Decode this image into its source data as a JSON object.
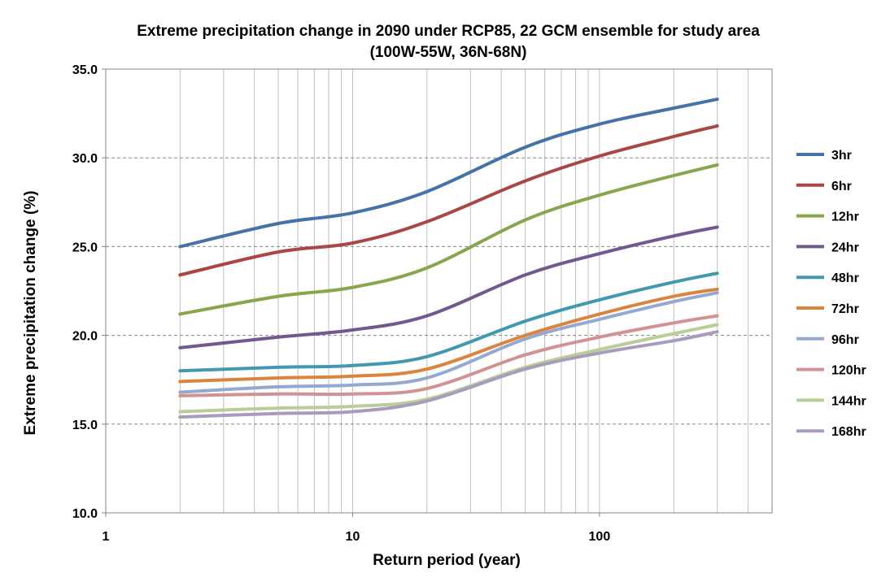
{
  "chart_data": {
    "type": "line",
    "title": "Extreme precipitation change in 2090 under RCP85, 22 GCM ensemble for study area",
    "subtitle": "(100W-55W, 36N-68N)",
    "xlabel": "Return period (year)",
    "ylabel": "Extreme precipitation change (%)",
    "x_scale": "log",
    "xlim": [
      1,
      500
    ],
    "ylim": [
      10,
      35
    ],
    "y_ticks": [
      "10.0",
      "15.0",
      "20.0",
      "25.0",
      "30.0",
      "35.0"
    ],
    "x_ticks": [
      "1",
      "10",
      "100"
    ],
    "grid": "on",
    "legend_position": "right",
    "x": [
      2,
      5,
      10,
      20,
      50,
      100,
      200,
      300
    ],
    "series": [
      {
        "name": "3hr",
        "color": "#4572A7",
        "values": [
          25.0,
          26.3,
          26.9,
          28.1,
          30.6,
          31.9,
          32.8,
          33.3
        ]
      },
      {
        "name": "6hr",
        "color": "#AA4643",
        "values": [
          23.4,
          24.7,
          25.2,
          26.4,
          28.7,
          30.1,
          31.2,
          31.8
        ]
      },
      {
        "name": "12hr",
        "color": "#89A54E",
        "values": [
          21.2,
          22.2,
          22.7,
          23.8,
          26.5,
          27.9,
          29.0,
          29.6
        ]
      },
      {
        "name": "24hr",
        "color": "#71588F",
        "values": [
          19.3,
          19.9,
          20.3,
          21.1,
          23.4,
          24.6,
          25.6,
          26.1
        ]
      },
      {
        "name": "48hr",
        "color": "#4198AF",
        "values": [
          18.0,
          18.2,
          18.3,
          18.8,
          20.8,
          22.0,
          23.0,
          23.5
        ]
      },
      {
        "name": "72hr",
        "color": "#DB843D",
        "values": [
          17.4,
          17.6,
          17.7,
          18.1,
          20.0,
          21.2,
          22.2,
          22.6
        ]
      },
      {
        "name": "96hr",
        "color": "#93A9CF",
        "values": [
          16.8,
          17.1,
          17.2,
          17.6,
          19.8,
          20.9,
          21.9,
          22.4
        ]
      },
      {
        "name": "120hr",
        "color": "#D19392",
        "values": [
          16.6,
          16.7,
          16.7,
          17.0,
          18.9,
          19.9,
          20.7,
          21.1
        ]
      },
      {
        "name": "144hr",
        "color": "#B9CD96",
        "values": [
          15.7,
          15.9,
          16.0,
          16.4,
          18.2,
          19.2,
          20.1,
          20.6
        ]
      },
      {
        "name": "168hr",
        "color": "#A99BBD",
        "values": [
          15.4,
          15.6,
          15.7,
          16.3,
          18.1,
          19.0,
          19.7,
          20.2
        ]
      }
    ]
  }
}
